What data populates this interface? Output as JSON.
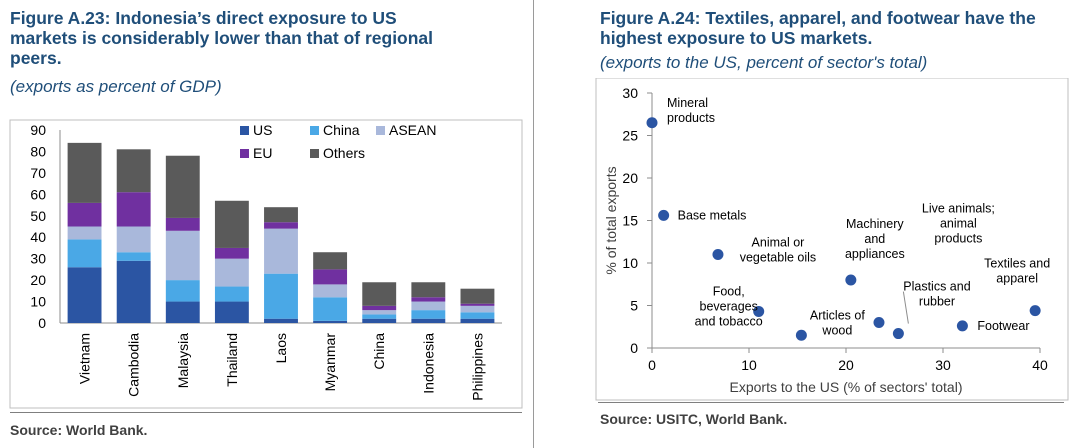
{
  "left": {
    "title_lines": [
      "Figure A.23: Indonesia’s direct exposure to US",
      "markets is considerably lower than that of regional",
      "peers."
    ],
    "subtitle": "(exports as percent of GDP)",
    "source": "Source: World Bank."
  },
  "right": {
    "title_lines": [
      "Figure A.24: Textiles, apparel, and footwear have the",
      "highest exposure to US markets."
    ],
    "subtitle": "(exports to the US, percent of sector's total)",
    "source": "Source: USITC, World Bank."
  },
  "chart_data": [
    {
      "type": "bar",
      "stacked": true,
      "categories": [
        "Vietnam",
        "Cambodia",
        "Malaysia",
        "Thailand",
        "Laos",
        "Myanmar",
        "China",
        "Indonesia",
        "Philippines"
      ],
      "series": [
        {
          "name": "US",
          "color": "#2b55a3",
          "values": [
            26,
            29,
            10,
            10,
            2,
            1,
            2,
            2,
            2
          ]
        },
        {
          "name": "China",
          "color": "#4aa8e6",
          "values": [
            13,
            4,
            10,
            7,
            21,
            11,
            2,
            4,
            3
          ]
        },
        {
          "name": "ASEAN",
          "color": "#a9b8db",
          "values": [
            6,
            12,
            23,
            13,
            21,
            6,
            2,
            4,
            3
          ]
        },
        {
          "name": "EU",
          "color": "#7030a0",
          "values": [
            11,
            16,
            6,
            5,
            3,
            7,
            2,
            2,
            1
          ]
        },
        {
          "name": "Others",
          "color": "#5a5a5a",
          "values": [
            28,
            20,
            29,
            22,
            7,
            8,
            11,
            7,
            7
          ]
        }
      ],
      "ylim": [
        0,
        90
      ],
      "yticks": [
        0,
        10,
        20,
        30,
        40,
        50,
        60,
        70,
        80,
        90
      ],
      "legend_position": "top-right"
    },
    {
      "type": "scatter",
      "xlabel": "Exports to the US (% of sectors' total)",
      "ylabel": "% of total exports",
      "xlim": [
        0,
        40
      ],
      "ylim": [
        0,
        30
      ],
      "xticks": [
        0,
        10,
        20,
        30,
        40
      ],
      "yticks": [
        0,
        5,
        10,
        15,
        20,
        25,
        30
      ],
      "color": "#2b55a3",
      "points": [
        {
          "label": "Mineral products",
          "x": 0,
          "y": 26.5
        },
        {
          "label": "Base metals",
          "x": 1.2,
          "y": 15.6
        },
        {
          "label": "Animal or vegetable oils",
          "x": 6.8,
          "y": 11
        },
        {
          "label": "Machinery and appliances",
          "x": 20.5,
          "y": 8
        },
        {
          "label": "Food, beverages and tobacco",
          "x": 11,
          "y": 4.3
        },
        {
          "label": "Articles of wood",
          "x": 15.4,
          "y": 1.5
        },
        {
          "label": "Plastics and rubber",
          "x": 23.4,
          "y": 3
        },
        {
          "label": "Live animals; animal products",
          "x": 25.4,
          "y": 1.7
        },
        {
          "label": "Footwear",
          "x": 32,
          "y": 2.6
        },
        {
          "label": "Textiles and apparel",
          "x": 39.5,
          "y": 4.4
        }
      ]
    }
  ]
}
